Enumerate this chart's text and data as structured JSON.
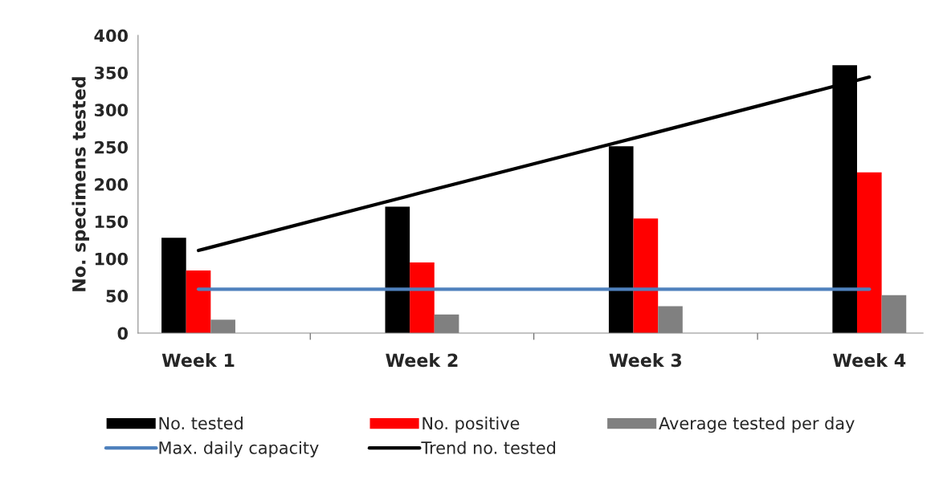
{
  "chart_data": {
    "type": "bar",
    "ylabel": "No. specimens tested",
    "categories": [
      "Week 1",
      "Week 2",
      "Week 3",
      "Week 4"
    ],
    "series": [
      {
        "name": "No. tested",
        "color": "#000000",
        "values": [
          128,
          170,
          251,
          360
        ]
      },
      {
        "name": "No. positive",
        "color": "#ff0000",
        "values": [
          84,
          95,
          154,
          216
        ]
      },
      {
        "name": "Average tested per day",
        "color": "#808080",
        "values": [
          18,
          25,
          36,
          51
        ]
      },
      {
        "name": "Max. daily capacity",
        "type": "line",
        "color": "#4f81bd",
        "values": [
          59,
          59,
          59,
          59
        ]
      },
      {
        "name": "Trend no. tested",
        "type": "line",
        "color": "#000000",
        "values": [
          111,
          189,
          266,
          344
        ]
      }
    ],
    "ylim": [
      0,
      400
    ],
    "yticks": [
      0,
      50,
      100,
      150,
      200,
      250,
      300,
      350,
      400
    ],
    "grid": false,
    "legend": "bottom"
  }
}
